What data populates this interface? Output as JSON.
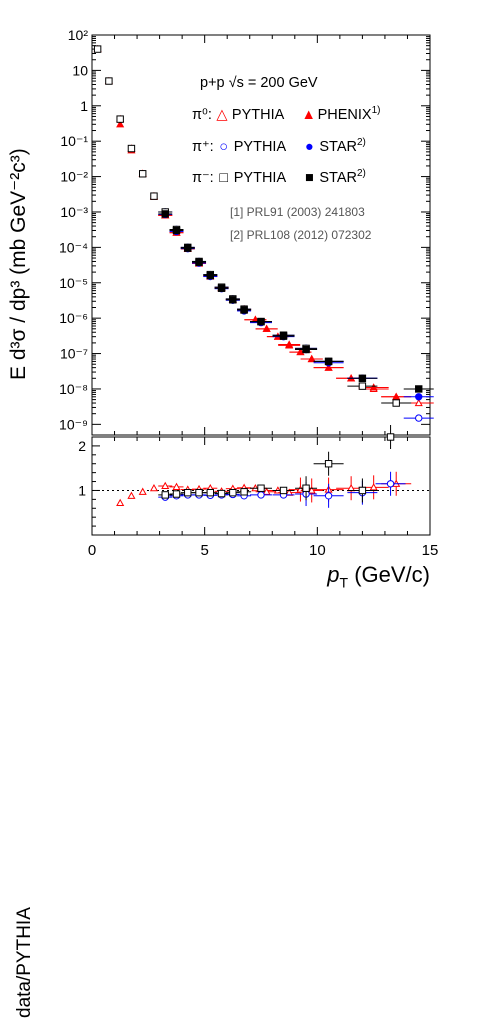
{
  "colors": {
    "pi0": "#ff0000",
    "pi_plus": "#0000ff",
    "pi_minus": "#000000",
    "axis": "#000000"
  },
  "labels": {
    "ylabel_top": "E d³σ / dp³ (mb GeV⁻²c³)",
    "ylabel_bottom": "data/PYTHIA",
    "xlabel_main": "p",
    "xlabel_sub": "T",
    "xlabel_unit": " (GeV/c)"
  },
  "legend": {
    "header": "p+p √s = 200 GeV",
    "rows": [
      {
        "particle": "π⁰:",
        "sim_label": "PYTHIA",
        "data_label": "PHENIX",
        "ref": "1)"
      },
      {
        "particle": "π⁺:",
        "sim_label": "PYTHIA",
        "data_label": "STAR",
        "ref": "2)"
      },
      {
        "particle": "π⁻:",
        "sim_label": "PYTHIA",
        "data_label": "STAR",
        "ref": "2)"
      }
    ],
    "refs": [
      "[1] PRL91 (2003) 241803",
      "[2] PRL108 (2012) 072302"
    ]
  },
  "chart_data": [
    {
      "type": "scatter",
      "panel": "top",
      "xlim": [
        0,
        15
      ],
      "ylim": [
        5e-10,
        100
      ],
      "y_log": true,
      "x_ticks": [
        0,
        5,
        10,
        15
      ],
      "y_ticks": [
        "10⁻⁹",
        "10⁻⁸",
        "10⁻⁷",
        "10⁻⁶",
        "10⁻⁵",
        "10⁻⁴",
        "10⁻³",
        "10⁻²",
        "10⁻¹",
        "1",
        "10",
        "10²"
      ],
      "series": [
        {
          "name": "π⁰ PYTHIA",
          "marker": "open-triangle",
          "x": [
            0.25,
            0.75,
            1.25,
            1.75,
            2.25,
            2.75,
            3.25,
            3.75,
            4.25,
            4.75,
            5.25,
            5.75,
            6.25,
            6.75,
            7.25,
            7.75,
            8.25,
            8.75,
            9.25,
            9.75,
            10.5,
            11.5,
            12.5,
            13.5,
            14.5
          ],
          "y": [
            40,
            5,
            0.42,
            0.062,
            0.012,
            0.0028,
            0.0008,
            0.00026,
            9e-05,
            3.5e-05,
            1.5e-05,
            7e-06,
            3.3e-06,
            1.7e-06,
            9e-07,
            5e-07,
            3e-07,
            1.8e-07,
            1.1e-07,
            7e-08,
            4e-08,
            2e-08,
            1e-08,
            6e-09,
            4e-09
          ]
        },
        {
          "name": "π⁰ PHENIX",
          "marker": "filled-triangle",
          "x": [
            1.25,
            1.75,
            2.25,
            2.75,
            3.25,
            3.75,
            4.25,
            4.75,
            5.25,
            5.75,
            6.25,
            6.75,
            7.25,
            7.75,
            8.25,
            8.75,
            9.25,
            9.75,
            10.5,
            11.5,
            12.5,
            13.5
          ],
          "y": [
            0.3,
            0.055,
            0.012,
            0.0027,
            0.0008,
            0.00026,
            9.5e-05,
            3.6e-05,
            1.6e-05,
            7.2e-06,
            3.4e-06,
            1.8e-06,
            9e-07,
            5e-07,
            3e-07,
            1.7e-07,
            1.1e-07,
            7e-08,
            4e-08,
            2e-08,
            1.1e-08,
            6e-09
          ]
        },
        {
          "name": "π⁺ PYTHIA",
          "marker": "open-circle",
          "x": [
            3.25,
            3.75,
            4.25,
            4.75,
            5.25,
            5.75,
            6.25,
            6.75,
            7.5,
            8.5,
            9.5,
            10.5,
            12.0,
            14.5
          ],
          "y": [
            0.001,
            0.00032,
            0.0001,
            4e-05,
            1.7e-05,
            7.5e-06,
            3.5e-06,
            1.8e-06,
            8e-07,
            3.3e-07,
            1.4e-07,
            6e-08,
            2e-08,
            1.5e-09
          ]
        },
        {
          "name": "π⁺ STAR",
          "marker": "filled-circle",
          "x": [
            3.25,
            3.75,
            4.25,
            4.75,
            5.25,
            5.75,
            6.25,
            6.75,
            7.5,
            8.5,
            9.5,
            10.5,
            12.0,
            14.5
          ],
          "y": [
            0.00085,
            0.00028,
            9.2e-05,
            3.6e-05,
            1.5e-05,
            6.8e-06,
            3.2e-06,
            1.6e-06,
            7.5e-07,
            3e-07,
            1.3e-07,
            5.5e-08,
            2e-08,
            6e-09
          ]
        },
        {
          "name": "π⁻ PYTHIA",
          "marker": "open-square",
          "x": [
            0.25,
            0.75,
            1.25,
            1.75,
            2.25,
            2.75,
            3.25,
            3.75,
            4.25,
            4.75,
            5.25,
            5.75,
            6.25,
            6.75,
            7.5,
            8.5,
            9.5,
            10.5,
            12.0,
            13.5
          ],
          "y": [
            40,
            5,
            0.42,
            0.062,
            0.012,
            0.0028,
            0.001,
            0.00032,
            0.0001,
            4e-05,
            1.7e-05,
            7.5e-06,
            3.5e-06,
            1.8e-06,
            8e-07,
            3.3e-07,
            1.4e-07,
            6e-08,
            1.2e-08,
            4e-09
          ]
        },
        {
          "name": "π⁻ STAR",
          "marker": "filled-square",
          "x": [
            3.25,
            3.75,
            4.25,
            4.75,
            5.25,
            5.75,
            6.25,
            6.75,
            7.5,
            8.5,
            9.5,
            10.5,
            12.0,
            14.5
          ],
          "y": [
            0.00088,
            0.0003,
            9.5e-05,
            3.8e-05,
            1.6e-05,
            7e-06,
            3.3e-06,
            1.7e-06,
            8e-07,
            3.1e-07,
            1.3e-07,
            6e-08,
            2e-08,
            1e-08
          ]
        }
      ]
    },
    {
      "type": "scatter",
      "panel": "bottom",
      "xlim": [
        0,
        15
      ],
      "ylim": [
        0,
        2.2
      ],
      "x_ticks": [
        0,
        5,
        10,
        15
      ],
      "y_ticks": [
        1,
        2
      ],
      "reference_line": 1,
      "series": [
        {
          "name": "π⁰ PHENIX / PYTHIA",
          "marker": "open-triangle",
          "x": [
            1.25,
            1.75,
            2.25,
            2.75,
            3.25,
            3.75,
            4.25,
            4.75,
            5.25,
            5.75,
            6.25,
            6.75,
            7.25,
            7.75,
            8.25,
            8.75,
            9.25,
            9.75,
            10.5,
            11.5,
            12.5,
            13.5
          ],
          "y": [
            0.72,
            0.88,
            0.97,
            1.05,
            1.1,
            1.08,
            1.02,
            1.03,
            1.05,
            0.98,
            1.04,
            1.06,
            1.05,
            0.97,
            1.0,
            0.95,
            1.02,
            1.0,
            1.02,
            1.05,
            1.07,
            1.15
          ]
        },
        {
          "name": "π⁺ STAR / PYTHIA",
          "marker": "open-circle",
          "x": [
            3.25,
            3.75,
            4.25,
            4.75,
            5.25,
            5.75,
            6.25,
            6.75,
            7.5,
            8.5,
            9.5,
            10.5,
            12.0,
            13.25
          ],
          "y": [
            0.85,
            0.88,
            0.9,
            0.9,
            0.89,
            0.9,
            0.91,
            0.88,
            0.9,
            0.9,
            0.92,
            0.88,
            0.95,
            1.15
          ]
        },
        {
          "name": "π⁻ STAR / PYTHIA",
          "marker": "open-square",
          "x": [
            3.25,
            3.75,
            4.25,
            4.75,
            5.25,
            5.75,
            6.25,
            6.75,
            7.5,
            8.5,
            9.5,
            10.5,
            12.0,
            13.25
          ],
          "y": [
            0.9,
            0.92,
            0.95,
            0.95,
            0.95,
            0.93,
            0.95,
            0.97,
            1.05,
            1.0,
            1.05,
            1.6,
            1.0,
            2.25
          ]
        }
      ]
    }
  ]
}
